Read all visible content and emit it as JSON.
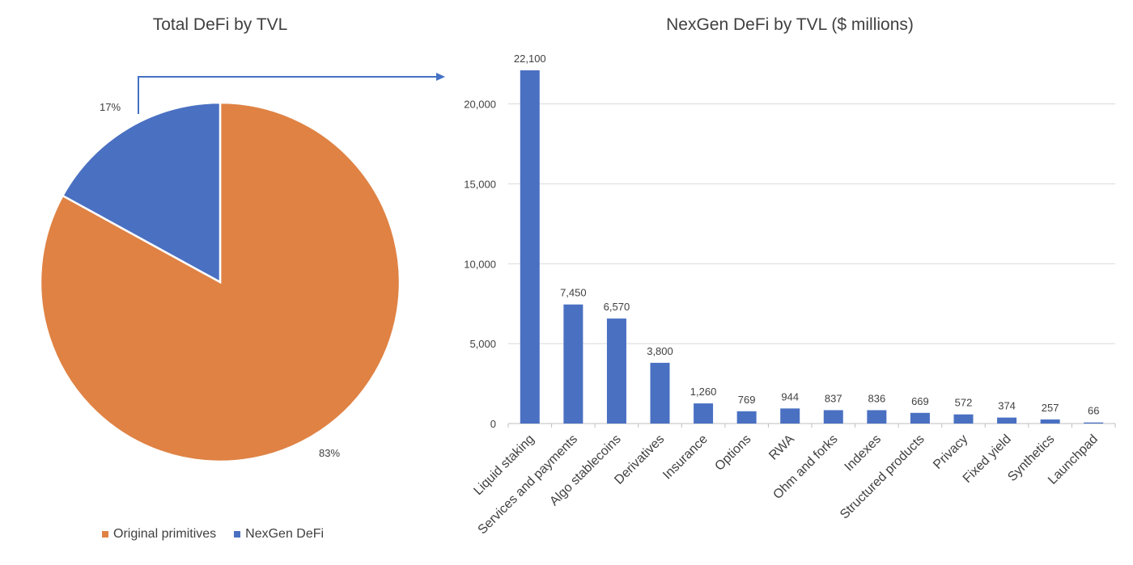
{
  "chart_data": [
    {
      "type": "pie",
      "title": "Total DeFi by TVL",
      "slices": [
        {
          "name": "Original primitives",
          "value": 83,
          "label": "83%",
          "color": "#DF8244"
        },
        {
          "name": "NexGen DeFi",
          "value": 17,
          "label": "17%",
          "color": "#4A70C2"
        }
      ],
      "legend": "bottom"
    },
    {
      "type": "bar",
      "title": "NexGen DeFi by TVL ($ millions)",
      "categories": [
        "Liquid staking",
        "Services and payments",
        "Algo stablecoins",
        "Derivatives",
        "Insurance",
        "Options",
        "RWA",
        "Ohm and forks",
        "Indexes",
        "Structured products",
        "Privacy",
        "Fixed yield",
        "Synthetics",
        "Launchpad"
      ],
      "values": [
        22100,
        7450,
        6570,
        3800,
        1260,
        769,
        944,
        837,
        836,
        669,
        572,
        374,
        257,
        66
      ],
      "data_labels": [
        "22,100",
        "7,450",
        "6,570",
        "3,800",
        "1,260",
        "769",
        "944",
        "837",
        "836",
        "669",
        "572",
        "374",
        "257",
        "66"
      ],
      "ylim": [
        0,
        22100
      ],
      "yticks": [
        0,
        5000,
        10000,
        15000,
        20000
      ],
      "ytick_labels": [
        "0",
        "5,000",
        "10,000",
        "15,000",
        "20,000"
      ],
      "grid": true,
      "color": "#4A70C2",
      "xlabel": "",
      "ylabel": ""
    }
  ]
}
